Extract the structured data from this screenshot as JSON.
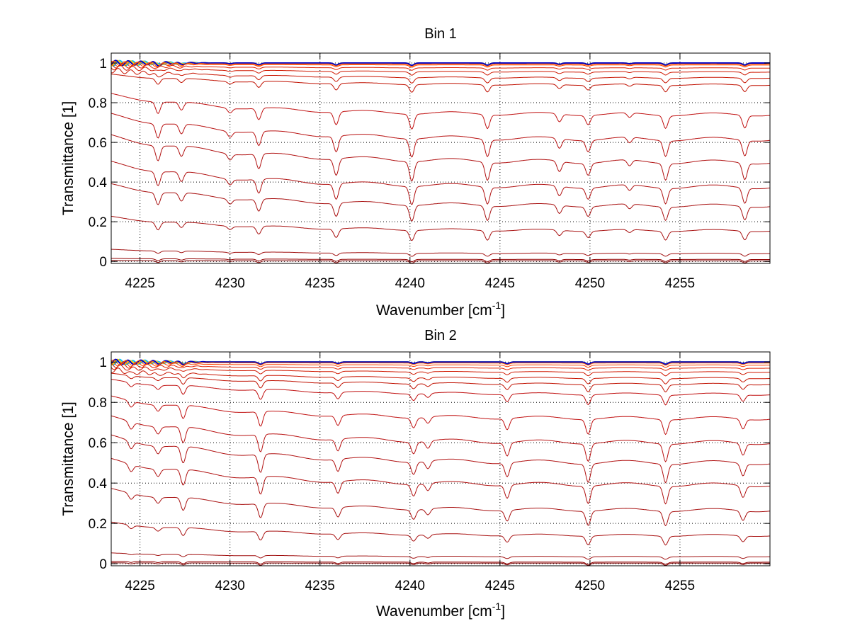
{
  "chart_data": [
    {
      "type": "line",
      "title": "Bin 1",
      "xlabel": "Wavenumber [cm",
      "xlabel_sup": "-1",
      "xlabel_end": "]",
      "ylabel": "Transmittance [1]",
      "xlim": [
        4223.4,
        4260
      ],
      "ylim": [
        -0.01,
        1.05
      ],
      "xticks": [
        4225,
        4230,
        4235,
        4240,
        4245,
        4250,
        4255
      ],
      "xtick_labels": [
        "4225",
        "4230",
        "4235",
        "4240",
        "4245",
        "4250",
        "4255"
      ],
      "yticks": [
        0,
        0.2,
        0.4,
        0.6,
        0.8,
        1
      ],
      "ytick_labels": [
        "0",
        "0.2",
        "0.4",
        "0.6",
        "0.8",
        "1"
      ],
      "grid": true,
      "absorption_lines": [
        {
          "center": 4226.0,
          "depth": 1.0
        },
        {
          "center": 4227.3,
          "depth": 0.7
        },
        {
          "center": 4230.0,
          "depth": 0.4
        },
        {
          "center": 4231.6,
          "depth": 1.0
        },
        {
          "center": 4235.9,
          "depth": 1.1
        },
        {
          "center": 4240.1,
          "depth": 1.3
        },
        {
          "center": 4244.3,
          "depth": 1.2
        },
        {
          "center": 4248.3,
          "depth": 0.7
        },
        {
          "center": 4249.9,
          "depth": 0.8
        },
        {
          "center": 4252.2,
          "depth": 0.4
        },
        {
          "center": 4254.2,
          "depth": 1.1
        },
        {
          "center": 4258.6,
          "depth": 1.1
        }
      ],
      "series_levels": [
        1.0,
        1.0,
        1.0,
        0.995,
        0.99,
        0.975,
        0.955,
        0.925,
        0.89,
        0.74,
        0.615,
        0.5,
        0.375,
        0.28,
        0.155,
        0.04,
        0.01,
        0.003
      ],
      "series_colors": [
        "#00bfff",
        "#ffd000",
        "#0000c8",
        "#ff6000",
        "#ff4000",
        "#e02000",
        "#d01800",
        "#c81400",
        "#c01000",
        "#c01010",
        "#b81010",
        "#b01010",
        "#b01010",
        "#a81010",
        "#a81010",
        "#a01010",
        "#900000",
        "#800000"
      ]
    },
    {
      "type": "line",
      "title": "Bin 2",
      "xlabel": "Wavenumber [cm",
      "xlabel_sup": "-1",
      "xlabel_end": "]",
      "ylabel": "Transmittance [1]",
      "xlim": [
        4223.4,
        4260
      ],
      "ylim": [
        -0.01,
        1.05
      ],
      "xticks": [
        4225,
        4230,
        4235,
        4240,
        4245,
        4250,
        4255
      ],
      "xtick_labels": [
        "4225",
        "4230",
        "4235",
        "4240",
        "4245",
        "4250",
        "4255"
      ],
      "yticks": [
        0,
        0.2,
        0.4,
        0.6,
        0.8,
        1
      ],
      "ytick_labels": [
        "0",
        "0.2",
        "0.4",
        "0.6",
        "0.8",
        "1"
      ],
      "grid": true,
      "absorption_lines": [
        {
          "center": 4224.5,
          "depth": 0.5
        },
        {
          "center": 4226.0,
          "depth": 0.5
        },
        {
          "center": 4227.4,
          "depth": 1.1
        },
        {
          "center": 4231.7,
          "depth": 1.2
        },
        {
          "center": 4236.0,
          "depth": 0.8
        },
        {
          "center": 4240.2,
          "depth": 0.8
        },
        {
          "center": 4241.0,
          "depth": 0.5
        },
        {
          "center": 4245.4,
          "depth": 0.9
        },
        {
          "center": 4249.9,
          "depth": 1.2
        },
        {
          "center": 4254.2,
          "depth": 1.2
        },
        {
          "center": 4258.5,
          "depth": 0.8
        }
      ],
      "series_levels": [
        1.0,
        1.0,
        1.0,
        0.995,
        0.985,
        0.97,
        0.95,
        0.92,
        0.89,
        0.84,
        0.72,
        0.6,
        0.5,
        0.39,
        0.265,
        0.14,
        0.035,
        0.008,
        0.003
      ],
      "series_colors": [
        "#00bfff",
        "#ffd000",
        "#0000c8",
        "#ff6000",
        "#ff4000",
        "#e02000",
        "#d01800",
        "#c81400",
        "#c01000",
        "#c01010",
        "#c01010",
        "#b81010",
        "#b01010",
        "#b01010",
        "#a81010",
        "#a81010",
        "#a01010",
        "#900000",
        "#800000"
      ]
    }
  ]
}
